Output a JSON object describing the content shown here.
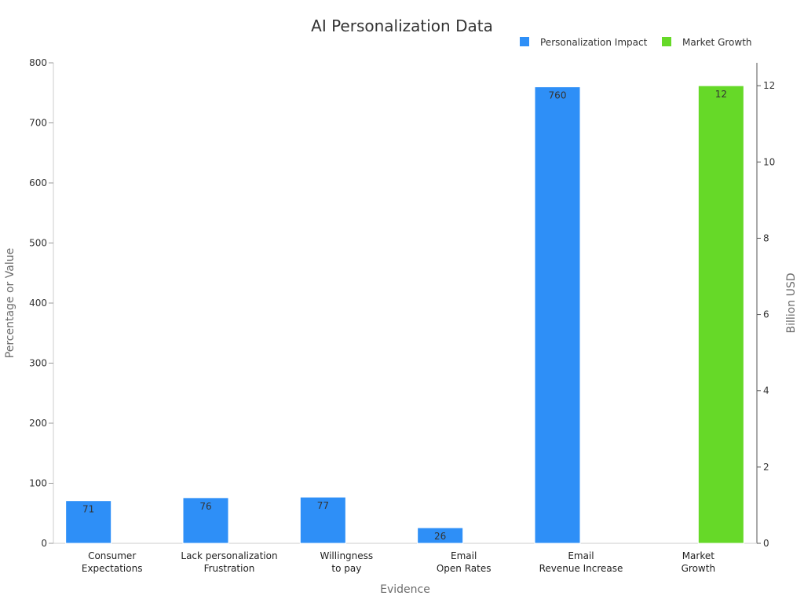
{
  "chart_data": {
    "type": "bar",
    "title": "AI Personalization Data",
    "xlabel": "Evidence",
    "ylabel": "Percentage or Value",
    "y2label": "Billion USD",
    "categories": [
      [
        "Consumer",
        "Expectations"
      ],
      [
        "Lack personalization",
        "Frustration"
      ],
      [
        "Willingness",
        "to pay"
      ],
      [
        "Email",
        "Open Rates"
      ],
      [
        "Email",
        "Revenue Increase"
      ],
      [
        "Market",
        "Growth"
      ]
    ],
    "ylim": [
      0,
      800
    ],
    "yticks": [
      0,
      100,
      200,
      300,
      400,
      500,
      600,
      700,
      800
    ],
    "y2lim": [
      0,
      12.6
    ],
    "y2ticks": [
      0,
      2,
      4,
      6,
      8,
      10,
      12
    ],
    "grid": false,
    "legend_position": "top-right",
    "series": [
      {
        "name": "Personalization Impact",
        "axis": "left",
        "color": "#2e8ff7",
        "values": [
          71,
          76,
          77,
          26,
          760,
          null
        ],
        "labels": [
          "71",
          "76",
          "77",
          "26",
          "760",
          null
        ]
      },
      {
        "name": "Market Growth",
        "axis": "right",
        "color": "#66d928",
        "values": [
          null,
          null,
          null,
          null,
          null,
          12
        ],
        "labels": [
          null,
          null,
          null,
          null,
          null,
          "12"
        ]
      }
    ]
  }
}
